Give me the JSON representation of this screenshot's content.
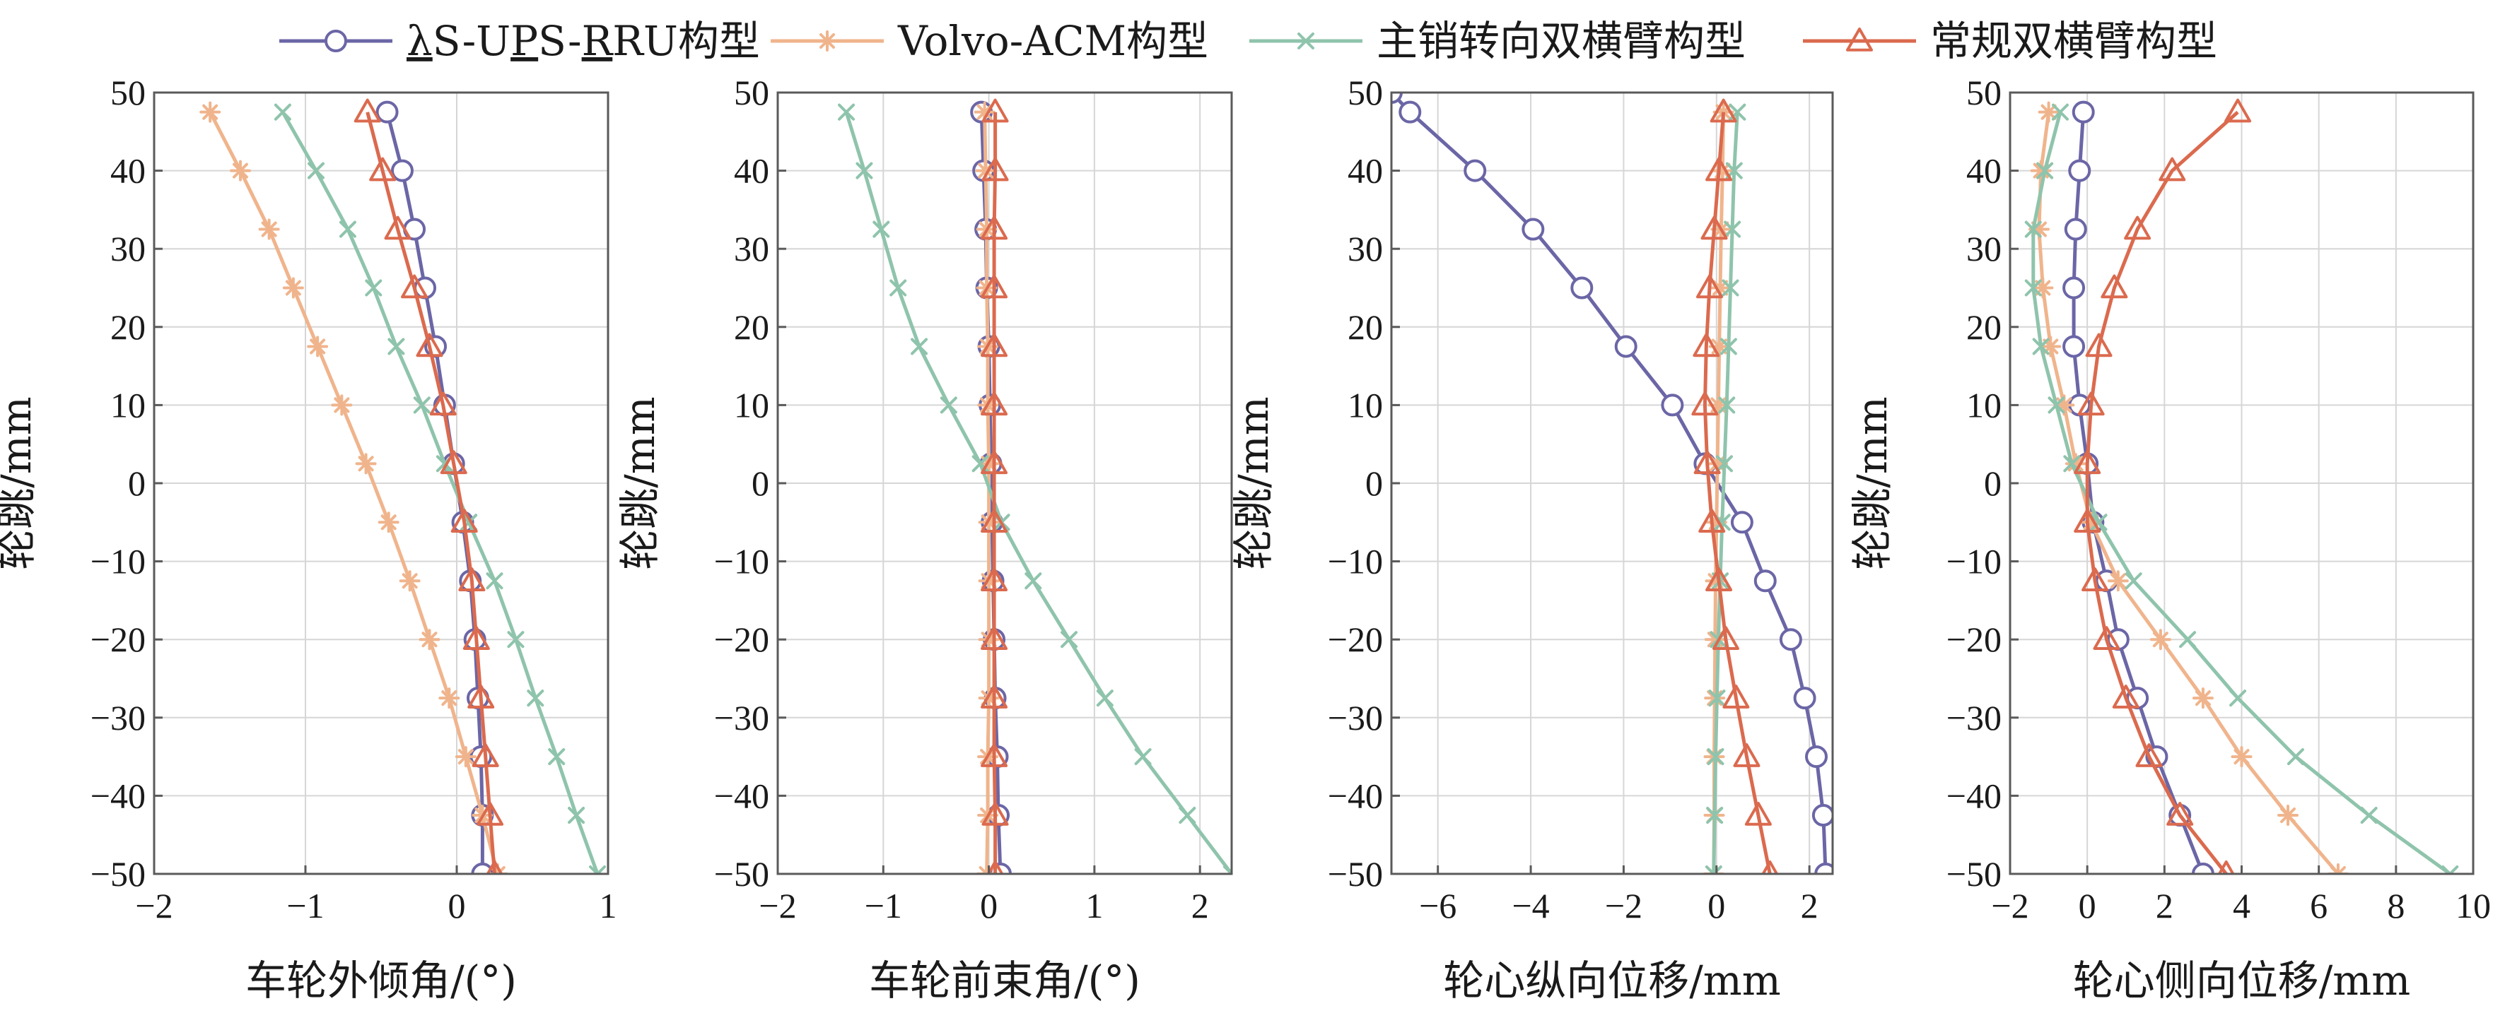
{
  "chart_data": {
    "type": "line",
    "series_meta": [
      {
        "name": "λS-UPS-RRU构型",
        "name_parts": [
          "λ",
          "S-U",
          "P",
          "S-",
          "R",
          "RU构型"
        ],
        "color": "#6b66a6",
        "marker": "circle"
      },
      {
        "name": "Volvo-ACM构型",
        "color": "#f0b48c",
        "marker": "asterisk"
      },
      {
        "name": "主销转向双横臂构型",
        "color": "#8fc4ac",
        "marker": "x"
      },
      {
        "name": "常规双横臂构型",
        "color": "#db6a4e",
        "marker": "triangle"
      }
    ],
    "plots": [
      {
        "xlabel": "车轮外倾角/(°)",
        "ylabel": "轮跳/mm",
        "xlim": [
          -2,
          1
        ],
        "ylim": [
          -50,
          50
        ],
        "xticks": [
          -2,
          -1,
          0,
          1
        ],
        "yticks": [
          50,
          40,
          30,
          20,
          10,
          0,
          -10,
          -20,
          -30,
          -40,
          -50
        ],
        "series": [
          {
            "name": "λS-UPS-RRU构型",
            "y": [
              47.5,
              40,
              32.5,
              25,
              17.5,
              10,
              2.5,
              -5,
              -12.5,
              -20,
              -27.5,
              -35,
              -42.5,
              -50
            ],
            "x": [
              -0.46,
              -0.36,
              -0.28,
              -0.21,
              -0.14,
              -0.08,
              -0.02,
              0.04,
              0.09,
              0.12,
              0.14,
              0.16,
              0.17,
              0.17
            ]
          },
          {
            "name": "Volvo-ACM构型",
            "y": [
              47.5,
              40,
              32.5,
              25,
              17.5,
              10,
              2.5,
              -5,
              -12.5,
              -20,
              -27.5,
              -35,
              -42.5,
              -50
            ],
            "x": [
              -1.63,
              -1.43,
              -1.24,
              -1.08,
              -0.92,
              -0.76,
              -0.6,
              -0.45,
              -0.31,
              -0.18,
              -0.05,
              0.06,
              0.17,
              0.27
            ]
          },
          {
            "name": "主销转向双横臂构型",
            "y": [
              47.5,
              40,
              32.5,
              25,
              17.5,
              10,
              2.5,
              -5,
              -12.5,
              -20,
              -27.5,
              -35,
              -42.5,
              -50
            ],
            "x": [
              -1.15,
              -0.93,
              -0.72,
              -0.55,
              -0.4,
              -0.23,
              -0.08,
              0.08,
              0.25,
              0.39,
              0.52,
              0.66,
              0.79,
              0.93
            ]
          },
          {
            "name": "常规双横臂构型",
            "y": [
              47.5,
              40,
              32.5,
              25,
              17.5,
              10,
              2.5,
              -5,
              -12.5,
              -20,
              -27.5,
              -35,
              -42.5,
              -50
            ],
            "x": [
              -0.59,
              -0.49,
              -0.39,
              -0.28,
              -0.18,
              -0.09,
              -0.02,
              0.05,
              0.1,
              0.13,
              0.16,
              0.19,
              0.22,
              0.25
            ]
          }
        ]
      },
      {
        "xlabel": "车轮前束角/(°)",
        "ylabel": "轮跳/mm",
        "xlim": [
          -2,
          2.3
        ],
        "ylim": [
          -50,
          50
        ],
        "xticks": [
          -2,
          -1,
          0,
          1,
          2
        ],
        "yticks": [
          50,
          40,
          30,
          20,
          10,
          0,
          -10,
          -20,
          -30,
          -40,
          -50
        ],
        "series": [
          {
            "name": "λS-UPS-RRU构型",
            "y": [
              47.5,
              40,
              32.5,
              25,
              17.5,
              10,
              2.5,
              -5,
              -12.5,
              -20,
              -27.5,
              -35,
              -42.5,
              -50
            ],
            "x": [
              -0.07,
              -0.05,
              -0.03,
              -0.02,
              0.0,
              0.01,
              0.02,
              0.03,
              0.04,
              0.05,
              0.06,
              0.08,
              0.09,
              0.11
            ]
          },
          {
            "name": "Volvo-ACM构型",
            "y": [
              47.5,
              40,
              32.5,
              25,
              17.5,
              10,
              2.5,
              -5,
              -12.5,
              -20,
              -27.5,
              -35,
              -42.5,
              -50
            ],
            "x": [
              -0.04,
              -0.03,
              -0.02,
              -0.02,
              -0.01,
              -0.01,
              0.0,
              0.0,
              0.0,
              0.0,
              0.0,
              -0.01,
              -0.01,
              -0.02
            ]
          },
          {
            "name": "主销转向双横臂构型",
            "y": [
              47.5,
              40,
              32.5,
              25,
              17.5,
              10,
              2.5,
              -5,
              -12.5,
              -20,
              -27.5,
              -35,
              -42.5,
              -50
            ],
            "x": [
              -1.35,
              -1.18,
              -1.02,
              -0.86,
              -0.66,
              -0.38,
              -0.08,
              0.12,
              0.42,
              0.76,
              1.1,
              1.46,
              1.88,
              2.3
            ]
          },
          {
            "name": "常规双横臂构型",
            "y": [
              47.5,
              40,
              32.5,
              25,
              17.5,
              10,
              2.5,
              -5,
              -12.5,
              -20,
              -27.5,
              -35,
              -42.5,
              -50
            ],
            "x": [
              0.06,
              0.06,
              0.05,
              0.05,
              0.05,
              0.05,
              0.05,
              0.05,
              0.05,
              0.05,
              0.05,
              0.05,
              0.06,
              0.06
            ]
          }
        ]
      },
      {
        "xlabel": "轮心纵向位移/mm",
        "ylabel": "轮跳/mm",
        "xlim": [
          -7,
          2.5
        ],
        "ylim": [
          -50,
          50
        ],
        "xticks": [
          -6,
          -4,
          -2,
          0,
          2
        ],
        "yticks": [
          50,
          40,
          30,
          20,
          10,
          0,
          -10,
          -20,
          -30,
          -40,
          -50
        ],
        "series": [
          {
            "name": "λS-UPS-RRU构型",
            "y": [
              50,
              47.5,
              40,
              32.5,
              25,
              17.5,
              10,
              2.5,
              -5,
              -12.5,
              -20,
              -27.5,
              -35,
              -42.5,
              -50
            ],
            "x": [
              -7,
              -6.6,
              -5.2,
              -3.95,
              -2.9,
              -1.95,
              -0.95,
              -0.25,
              0.55,
              1.05,
              1.6,
              1.9,
              2.15,
              2.3,
              2.35
            ]
          },
          {
            "name": "Volvo-ACM构型",
            "y": [
              47.5,
              40,
              32.5,
              25,
              17.5,
              10,
              2.5,
              -5,
              -12.5,
              -20,
              -27.5,
              -35,
              -42.5,
              -50
            ],
            "x": [
              0.15,
              0.13,
              0.1,
              0.08,
              0.06,
              0.04,
              0.02,
              0.0,
              -0.02,
              -0.03,
              -0.04,
              -0.05,
              -0.05,
              -0.06
            ]
          },
          {
            "name": "主销转向双横臂构型",
            "y": [
              47.5,
              40,
              32.5,
              25,
              17.5,
              10,
              2.5,
              -5,
              -12.5,
              -20,
              -27.5,
              -35,
              -42.5,
              -50
            ],
            "x": [
              0.45,
              0.38,
              0.34,
              0.3,
              0.26,
              0.22,
              0.17,
              0.12,
              0.08,
              0.04,
              0.01,
              -0.02,
              -0.04,
              -0.06
            ]
          },
          {
            "name": "常规双横臂构型",
            "y": [
              47.5,
              40,
              32.5,
              25,
              17.5,
              10,
              2.5,
              -5,
              -12.5,
              -20,
              -27.5,
              -35,
              -42.5,
              -50
            ],
            "x": [
              0.15,
              0.05,
              -0.05,
              -0.15,
              -0.22,
              -0.25,
              -0.2,
              -0.1,
              0.05,
              0.2,
              0.42,
              0.65,
              0.9,
              1.15
            ]
          }
        ]
      },
      {
        "xlabel": "轮心侧向位移/mm",
        "ylabel": "轮跳/mm",
        "xlim": [
          -2,
          10
        ],
        "ylim": [
          -50,
          50
        ],
        "xticks": [
          -2,
          0,
          2,
          4,
          6,
          8,
          10
        ],
        "yticks": [
          50,
          40,
          30,
          20,
          10,
          0,
          -10,
          -20,
          -30,
          -40,
          -50
        ],
        "series": [
          {
            "name": "λS-UPS-RRU构型",
            "y": [
              47.5,
              40,
              32.5,
              25,
              17.5,
              10,
              2.5,
              -5,
              -12.5,
              -20,
              -27.5,
              -35,
              -42.5,
              -50
            ],
            "x": [
              -0.1,
              -0.2,
              -0.3,
              -0.35,
              -0.35,
              -0.2,
              0.0,
              0.15,
              0.5,
              0.8,
              1.3,
              1.8,
              2.4,
              3.0
            ]
          },
          {
            "name": "Volvo-ACM构型",
            "y": [
              47.5,
              40,
              32.5,
              25,
              17.5,
              10,
              2.5,
              -5,
              -12.5,
              -20,
              -27.5,
              -35,
              -42.5,
              -50
            ],
            "x": [
              -1.0,
              -1.2,
              -1.25,
              -1.15,
              -0.95,
              -0.6,
              -0.3,
              0.1,
              0.8,
              1.9,
              3.0,
              4.0,
              5.2,
              6.5
            ]
          },
          {
            "name": "主销转向双横臂构型",
            "y": [
              47.5,
              40,
              32.5,
              25,
              17.5,
              10,
              2.5,
              -5,
              -12.5,
              -20,
              -27.5,
              -35,
              -42.5,
              -50
            ],
            "x": [
              -0.7,
              -1.1,
              -1.4,
              -1.4,
              -1.2,
              -0.8,
              -0.4,
              0.3,
              1.2,
              2.6,
              3.9,
              5.4,
              7.3,
              9.4
            ]
          },
          {
            "name": "常规双横臂构型",
            "y": [
              47.5,
              40,
              32.5,
              25,
              17.5,
              10,
              2.5,
              -5,
              -12.5,
              -20,
              -27.5,
              -35,
              -42.5,
              -50
            ],
            "x": [
              3.9,
              2.2,
              1.3,
              0.7,
              0.3,
              0.1,
              0.0,
              0.0,
              0.2,
              0.5,
              1.0,
              1.6,
              2.4,
              3.6
            ]
          }
        ]
      }
    ]
  }
}
